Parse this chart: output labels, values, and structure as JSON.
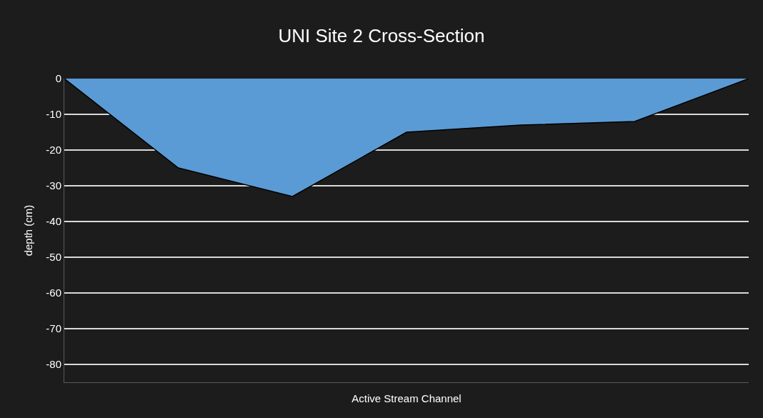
{
  "chart_data": {
    "type": "area",
    "title": "UNI Site 2 Cross-Section",
    "xlabel": "Active Stream Channel",
    "ylabel": "depth (cm)",
    "categories": [
      null,
      null,
      null,
      null,
      null,
      null,
      null
    ],
    "series": [
      {
        "color": "#5b9bd5",
        "values": [
          0,
          -25,
          -33,
          -15,
          -13,
          -12,
          0
        ]
      }
    ],
    "ylim": [
      -85,
      0
    ],
    "yticks": [
      0,
      -10,
      -20,
      -30,
      -40,
      -50,
      -60,
      -70,
      -80
    ],
    "grid": "y"
  }
}
